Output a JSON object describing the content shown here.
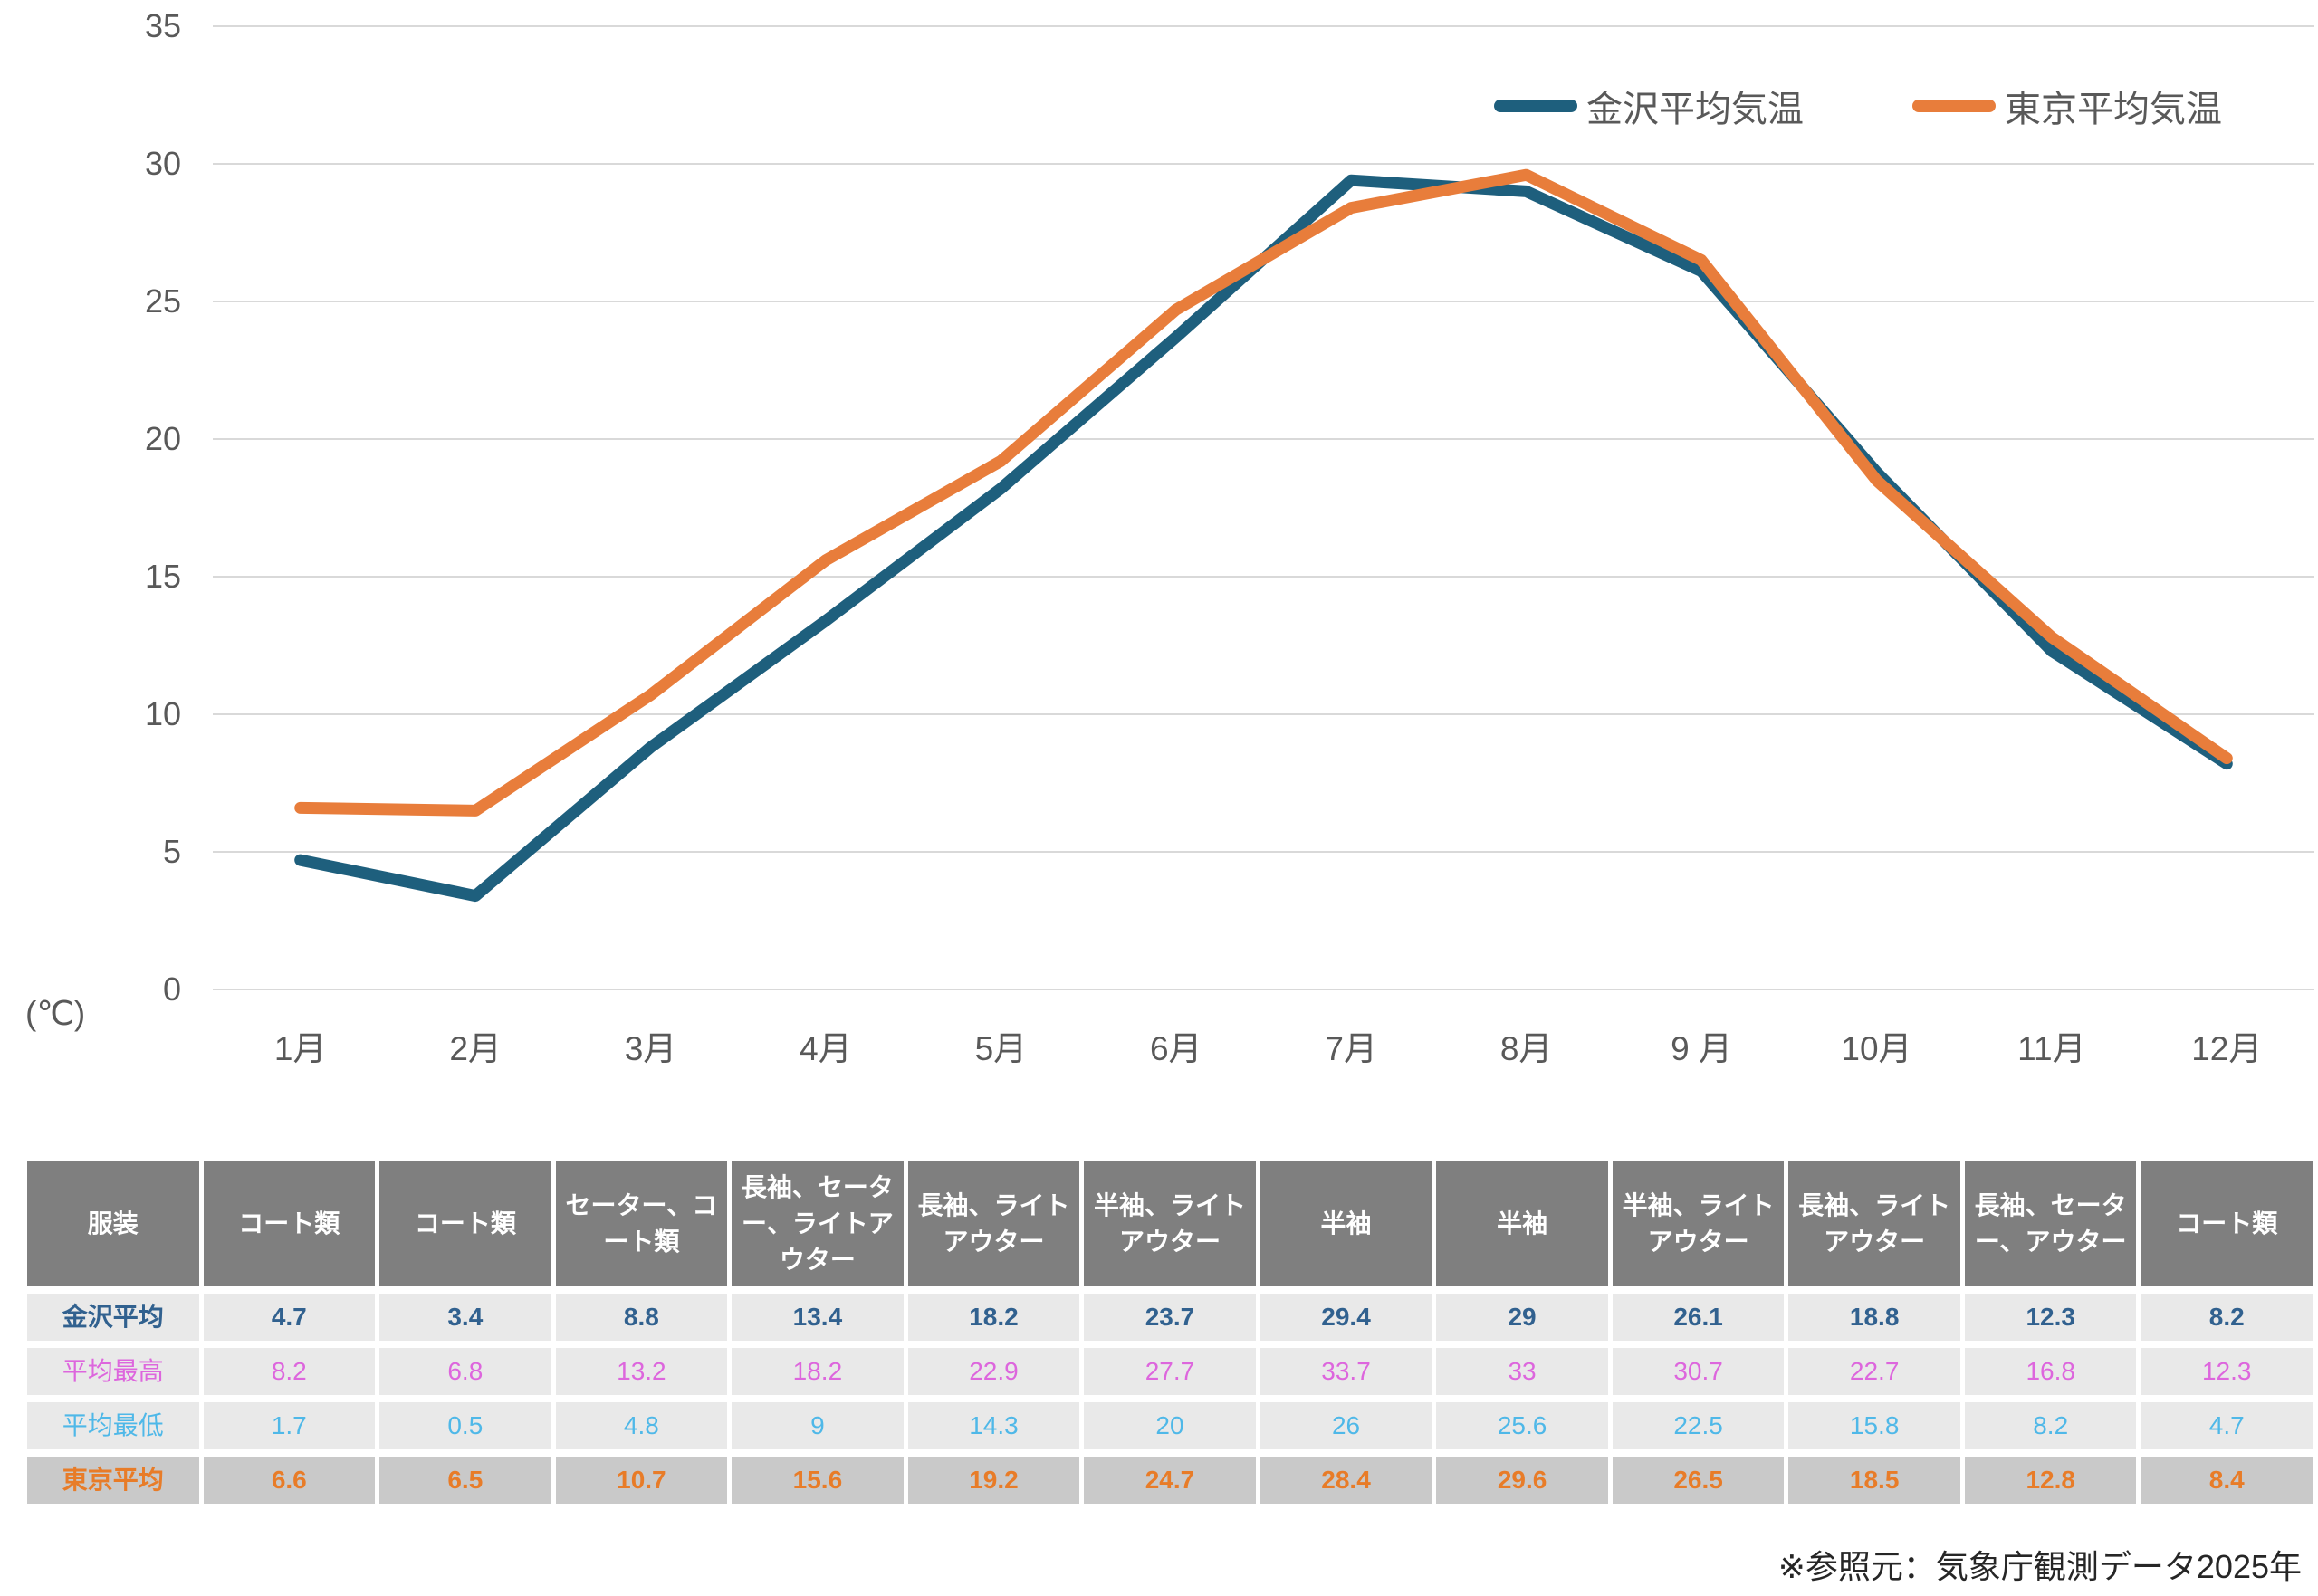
{
  "chart_data": {
    "type": "line",
    "x": [
      "1月",
      "2月",
      "3月",
      "4月",
      "5月",
      "6月",
      "7月",
      "8月",
      "9 月",
      "10月",
      "11月",
      "12月"
    ],
    "series": [
      {
        "name": "金沢平均気温",
        "color": "#1E5F7D",
        "values": [
          4.7,
          3.4,
          8.8,
          13.4,
          18.2,
          23.7,
          29.4,
          29,
          26.1,
          18.8,
          12.3,
          8.2
        ]
      },
      {
        "name": "東京平均気温",
        "color": "#E87D3B",
        "values": [
          6.6,
          6.5,
          10.7,
          15.6,
          19.2,
          24.7,
          28.4,
          29.6,
          26.5,
          18.5,
          12.8,
          8.4
        ]
      }
    ],
    "title": "",
    "xlabel": "",
    "ylabel": "(℃)",
    "ylim": [
      0,
      35
    ],
    "yticks": [
      0,
      5,
      10,
      15,
      20,
      25,
      30,
      35
    ],
    "grid": true,
    "grid_color": "#D9D9D9",
    "axis_text_color": "#595959",
    "legend_position": "top-right"
  },
  "table": {
    "header_bg": "#7F7F7F",
    "header_color": "#FFFFFF",
    "header": [
      "服装",
      "コート類",
      "コート類",
      "セーター、コート類",
      "長袖、セーター、ライトアウター",
      "長袖、ライトアウター",
      "半袖、ライトアウター",
      "半袖",
      "半袖",
      "半袖、ライトアウター",
      "長袖、ライトアウター",
      "長袖、セーター、アウター",
      "コート類"
    ],
    "rows": [
      {
        "label": "金沢平均",
        "color": "#31618F",
        "bold": true,
        "bg": "#E9E9E9",
        "values": [
          "4.7",
          "3.4",
          "8.8",
          "13.4",
          "18.2",
          "23.7",
          "29.4",
          "29",
          "26.1",
          "18.8",
          "12.3",
          "8.2"
        ]
      },
      {
        "label": "平均最高",
        "color": "#DD66DD",
        "bold": false,
        "bg": "#E9E9E9",
        "values": [
          "8.2",
          "6.8",
          "13.2",
          "18.2",
          "22.9",
          "27.7",
          "33.7",
          "33",
          "30.7",
          "22.7",
          "16.8",
          "12.3"
        ]
      },
      {
        "label": "平均最低",
        "color": "#4FB8E8",
        "bold": false,
        "bg": "#E9E9E9",
        "values": [
          "1.7",
          "0.5",
          "4.8",
          "9",
          "14.3",
          "20",
          "26",
          "25.6",
          "22.5",
          "15.8",
          "8.2",
          "4.7"
        ]
      },
      {
        "label": "東京平均",
        "color": "#E87C28",
        "bold": true,
        "bg": "#C9C9C9",
        "values": [
          "6.6",
          "6.5",
          "10.7",
          "15.6",
          "19.2",
          "24.7",
          "28.4",
          "29.6",
          "26.5",
          "18.5",
          "12.8",
          "8.4"
        ]
      }
    ]
  },
  "footer": {
    "note": "※参照元：気象庁観測データ2025年"
  }
}
